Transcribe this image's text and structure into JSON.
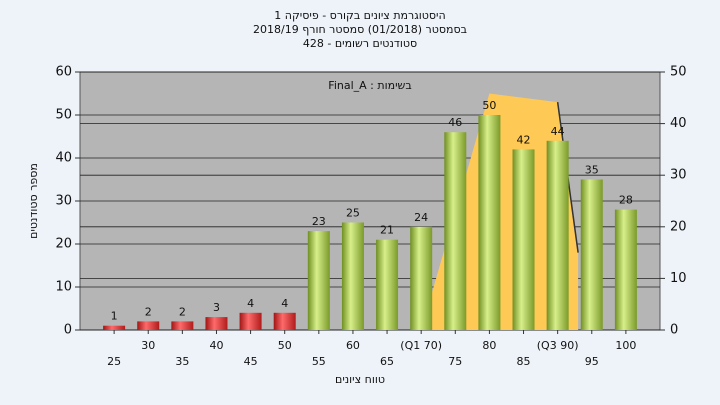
{
  "chart_data": {
    "type": "bar",
    "title": [
      "היסטוגרמת ציונים בקורס - פיסיקה 1",
      "בסמסטר  (01/2018)  סמסטר חורף 2018/19",
      "סטודנטים רשומים - 428"
    ],
    "annotation": "בשימות : Final_A",
    "x_label": "טווח ציונים",
    "y_label": "מספר סטודנטים",
    "categories": [
      "25",
      "30",
      "35",
      "40",
      "45",
      "50",
      "55",
      "60",
      "65",
      "(Q1 70)",
      "75",
      "80",
      "85",
      "(Q3 90)",
      "95",
      "100"
    ],
    "values": [
      1,
      2,
      2,
      3,
      4,
      4,
      23,
      25,
      21,
      24,
      46,
      50,
      42,
      44,
      35,
      28
    ],
    "colors": [
      "red",
      "red",
      "red",
      "red",
      "red",
      "red",
      "green",
      "green",
      "green",
      "green",
      "green",
      "green",
      "green",
      "green",
      "green",
      "green"
    ],
    "quartile_area": {
      "color": "#ffc955",
      "x": [
        70,
        80,
        90,
        93
      ],
      "values": [
        0,
        55,
        53,
        18
      ]
    },
    "ylim": [
      0,
      60
    ],
    "yticks": [
      0,
      10,
      20,
      30,
      40,
      50,
      60
    ],
    "y2lim": [
      0,
      50
    ],
    "y2ticks": [
      0,
      10,
      20,
      30,
      40,
      50
    ],
    "grid": true
  }
}
